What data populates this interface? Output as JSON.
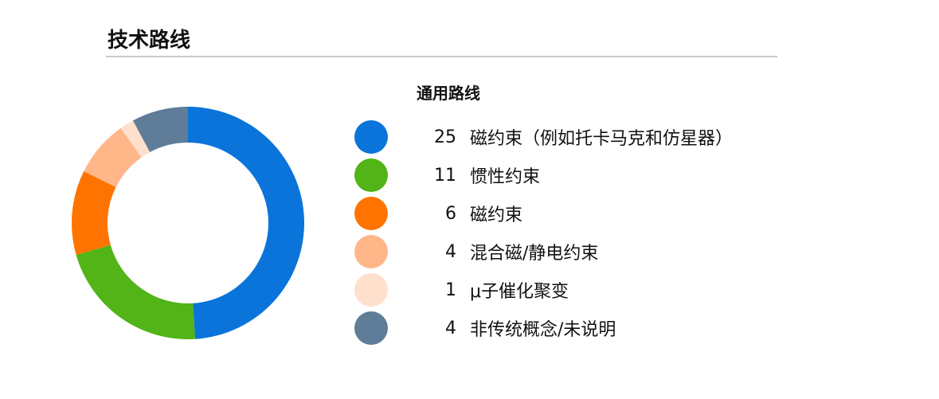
{
  "header": {
    "title": "技术路线"
  },
  "chart_data": {
    "type": "pie",
    "style": "donut",
    "legend_title": "通用路线",
    "legend_position": "right",
    "categories": [
      "磁约束（例如托卡马克和仿星器）",
      "惯性约束",
      "磁约束",
      "混合磁/静电约束",
      "μ子催化聚变",
      "非传统概念/未说明"
    ],
    "values": [
      25,
      11,
      6,
      4,
      1,
      4
    ],
    "colors": [
      "#0a74da",
      "#52b416",
      "#ff7400",
      "#ffb78a",
      "#ffe0cc",
      "#5f7d99"
    ]
  }
}
